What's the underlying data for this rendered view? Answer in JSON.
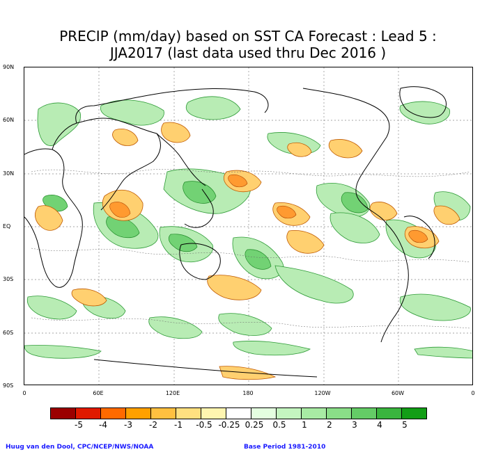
{
  "title": {
    "line1": "PRECIP (mm/day) based on SST CA Forecast : Lead 5 :",
    "line2": "JJA2017 (last data used thru Dec 2016 )"
  },
  "axes": {
    "lat_labels": [
      "90N",
      "60N",
      "30N",
      "EQ",
      "30S",
      "60S",
      "90S"
    ],
    "lon_labels": [
      "0",
      "60E",
      "120E",
      "180",
      "120W",
      "60W",
      "0"
    ]
  },
  "colorbar": {
    "colors": [
      "#9b0000",
      "#e01a00",
      "#ff6a00",
      "#ffa000",
      "#ffc040",
      "#ffe080",
      "#fff5b0",
      "#ffffff",
      "#e4ffe0",
      "#c4f5c0",
      "#a8eba4",
      "#8ade88",
      "#64cc66",
      "#3ab53e",
      "#129e16"
    ],
    "labels": [
      "-5",
      "-4",
      "-3",
      "-2",
      "-1",
      "-0.5",
      "-0.25",
      "0.25",
      "0.5",
      "1",
      "2",
      "3",
      "4",
      "5"
    ]
  },
  "footer": {
    "left": "Huug van den Dool, CPC/NCEP/NWS/NOAA",
    "right": "Base Period 1981-2010"
  }
}
